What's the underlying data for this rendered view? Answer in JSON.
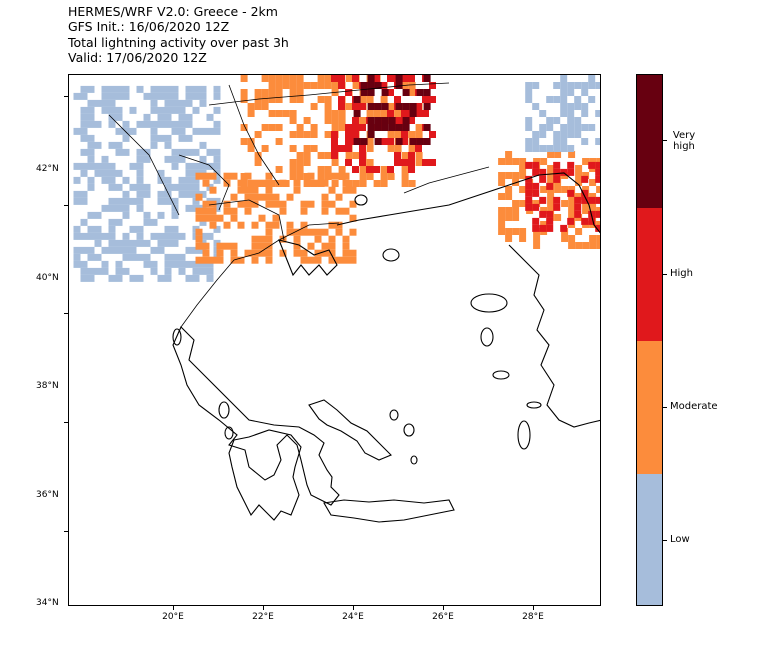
{
  "title": {
    "line1": "HERMES/WRF V2.0: Greece - 2km",
    "line2": "GFS Init.: 16/06/2020 12Z",
    "line3": "Total lightning activity over past 3h",
    "line4": "Valid: 17/06/2020 12Z"
  },
  "axes": {
    "lat_ticks": [
      {
        "value": 42,
        "label": "42°N"
      },
      {
        "value": 40,
        "label": "40°N"
      },
      {
        "value": 38,
        "label": "38°N"
      },
      {
        "value": 36,
        "label": "36°N"
      },
      {
        "value": 34,
        "label": "34°N"
      }
    ],
    "lon_ticks": [
      {
        "value": 20,
        "label": "20°E"
      },
      {
        "value": 22,
        "label": "22°E"
      },
      {
        "value": 24,
        "label": "24°E"
      },
      {
        "value": 26,
        "label": "26°E"
      },
      {
        "value": 28,
        "label": "28°E"
      }
    ],
    "lon_range": [
      17.7,
      29.5
    ],
    "lat_range": [
      34.0,
      43.8
    ]
  },
  "legend": {
    "classes": [
      {
        "label": "Very\nhigh",
        "display": "Very high",
        "color": "#670010"
      },
      {
        "label": "High",
        "display": "High",
        "color": "#e0181c"
      },
      {
        "label": "Moderate",
        "display": "Moderate",
        "color": "#fc8c3c"
      },
      {
        "label": "Low",
        "display": "Low",
        "color": "#a6bddb"
      }
    ]
  },
  "map_data": {
    "regions": [
      {
        "name": "northwest-balkans",
        "level": "low",
        "lon": [
          17.8,
          21.0
        ],
        "lat": [
          40.0,
          43.6
        ]
      },
      {
        "name": "bulgaria-north",
        "level": "moderate",
        "lon": [
          21.5,
          25.5
        ],
        "lat": [
          41.8,
          43.8
        ]
      },
      {
        "name": "bulgaria-core",
        "level": "high",
        "lon": [
          23.5,
          25.8
        ],
        "lat": [
          42.0,
          43.8
        ]
      },
      {
        "name": "bulgaria-peak",
        "level": "very-high",
        "lon": [
          24.0,
          25.6
        ],
        "lat": [
          42.6,
          43.8
        ]
      },
      {
        "name": "turkey-east",
        "level": "moderate",
        "lon": [
          27.2,
          29.5
        ],
        "lat": [
          40.6,
          42.4
        ]
      },
      {
        "name": "turkey-high",
        "level": "high",
        "lon": [
          27.8,
          29.5
        ],
        "lat": [
          41.0,
          42.2
        ]
      },
      {
        "name": "macedonia-thrace",
        "level": "moderate",
        "lon": [
          20.5,
          24.0
        ],
        "lat": [
          40.4,
          42.0
        ]
      },
      {
        "name": "black-sea-low",
        "level": "low",
        "lon": [
          27.8,
          29.5
        ],
        "lat": [
          42.5,
          43.8
        ]
      }
    ]
  }
}
